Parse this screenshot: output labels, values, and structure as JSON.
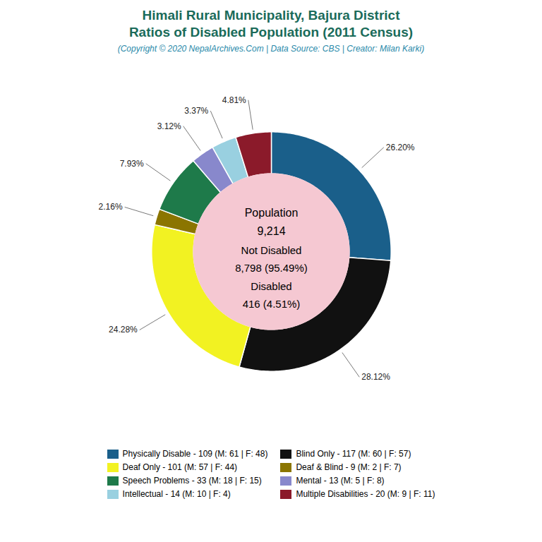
{
  "chart_data": {
    "type": "pie",
    "title": [
      "Himali Rural Municipality, Bajura District",
      "Ratios of Disabled Population (2011 Census)"
    ],
    "subtitle": "(Copyright © 2020 NepalArchives.Com | Data Source: CBS | Creator: Milan Karki)",
    "categories": [
      "Physically Disable - 109 (M: 61 | F: 48)",
      "Blind Only - 117 (M: 60 | F: 57)",
      "Deaf Only - 101 (M: 57 | F: 44)",
      "Deaf & Blind - 9 (M: 2 | F: 7)",
      "Speech Problems - 33 (M: 18 | F: 15)",
      "Mental - 13 (M: 5 | F: 8)",
      "Intellectual - 14 (M: 10 | F: 4)",
      "Multiple Disabilities - 20 (M: 9 | F: 11)"
    ],
    "values": [
      26.2,
      28.12,
      24.28,
      2.16,
      7.93,
      3.12,
      3.37,
      4.81
    ],
    "value_labels": [
      "26.20%",
      "28.12%",
      "24.28%",
      "2.16%",
      "7.93%",
      "3.12%",
      "3.37%",
      "4.81%"
    ],
    "colors": [
      "#1a5f8a",
      "#111111",
      "#f2f222",
      "#8b7500",
      "#1e7a4a",
      "#8888cc",
      "#99d0e0",
      "#8b1a2a"
    ],
    "data_labels": true,
    "legend": "bottom",
    "annotations": [
      "Population",
      "9,214",
      "Not Disabled",
      "8,798 (95.49%)",
      "Disabled",
      "416 (4.51%)"
    ]
  }
}
